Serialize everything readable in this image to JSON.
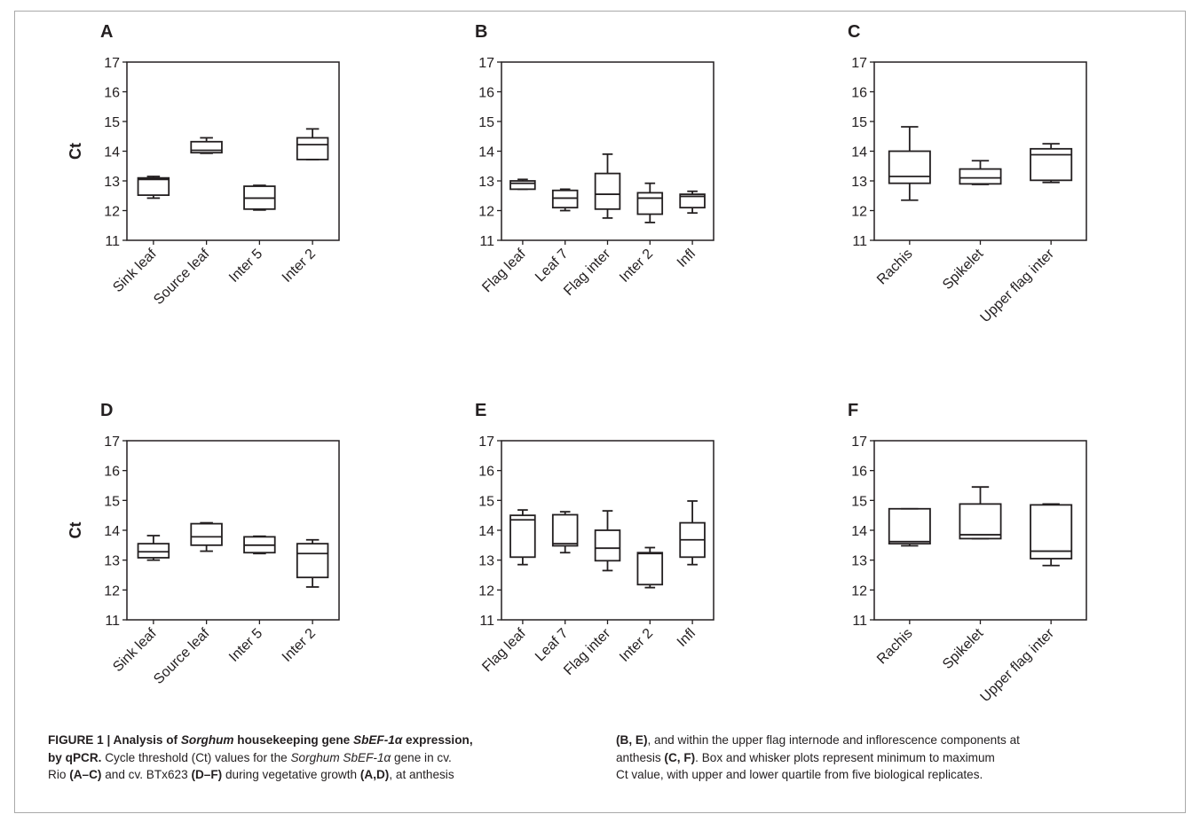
{
  "figure": {
    "caption": {
      "figure_label": "FIGURE 1 | ",
      "title_1": "Analysis of ",
      "title_sorghum": "Sorghum",
      "title_2": " housekeeping gene ",
      "title_gene": "SbEF-1α",
      "title_3": " expression,",
      "title_4": "by qPCR.",
      "text_1": " Cycle threshold (Ct) values for the ",
      "text_sorghum": "Sorghum SbEF-1α",
      "text_2": " gene in cv.",
      "text_3": "Rio ",
      "ref_ac": "(A–C)",
      "text_4": " and cv. BTx623 ",
      "ref_df": "(D–F)",
      "text_5": " during vegetative growth ",
      "ref_ad": "(A,D)",
      "text_6": ", at anthesis",
      "ref_be": "(B, E)",
      "text_7": ", and within the upper flag internode and inflorescence components at",
      "text_8": "anthesis ",
      "ref_cf": "(C, F)",
      "text_9": ". Box and whisker plots represent minimum to maximum",
      "text_10": "Ct value, with upper and lower quartile from five biological replicates."
    }
  },
  "chart_data": [
    {
      "panel": "A",
      "type": "box",
      "ylabel": "Ct",
      "ylim": [
        11,
        17
      ],
      "yticks": [
        11,
        12,
        13,
        14,
        15,
        16,
        17
      ],
      "categories": [
        "Sink leaf",
        "Source leaf",
        "Inter 5",
        "Inter 2"
      ],
      "boxes": [
        {
          "min": 12.42,
          "q1": 12.52,
          "median": 13.05,
          "q3": 13.1,
          "max": 13.15
        },
        {
          "min": 13.93,
          "q1": 13.95,
          "median": 14.03,
          "q3": 14.32,
          "max": 14.45
        },
        {
          "min": 12.02,
          "q1": 12.05,
          "median": 12.42,
          "q3": 12.82,
          "max": 12.85
        },
        {
          "min": 13.72,
          "q1": 13.72,
          "median": 14.22,
          "q3": 14.45,
          "max": 14.75
        }
      ]
    },
    {
      "panel": "B",
      "type": "box",
      "ylabel": "",
      "ylim": [
        11,
        17
      ],
      "yticks": [
        11,
        12,
        13,
        14,
        15,
        16,
        17
      ],
      "categories": [
        "Flag leaf",
        "Leaf 7",
        "Flag inter",
        "Inter 2",
        "Infl"
      ],
      "boxes": [
        {
          "min": 12.72,
          "q1": 12.72,
          "median": 12.92,
          "q3": 13.0,
          "max": 13.05
        },
        {
          "min": 12.0,
          "q1": 12.1,
          "median": 12.42,
          "q3": 12.68,
          "max": 12.72
        },
        {
          "min": 11.75,
          "q1": 12.05,
          "median": 12.55,
          "q3": 13.25,
          "max": 13.9
        },
        {
          "min": 11.6,
          "q1": 11.88,
          "median": 12.42,
          "q3": 12.6,
          "max": 12.92
        },
        {
          "min": 11.92,
          "q1": 12.1,
          "median": 12.48,
          "q3": 12.55,
          "max": 12.65
        }
      ]
    },
    {
      "panel": "C",
      "type": "box",
      "ylabel": "",
      "ylim": [
        11,
        17
      ],
      "yticks": [
        11,
        12,
        13,
        14,
        15,
        16,
        17
      ],
      "categories": [
        "Rachis",
        "Spikelet",
        "Upper flag inter"
      ],
      "boxes": [
        {
          "min": 12.35,
          "q1": 12.92,
          "median": 13.15,
          "q3": 14.0,
          "max": 14.82
        },
        {
          "min": 12.88,
          "q1": 12.9,
          "median": 13.1,
          "q3": 13.4,
          "max": 13.68
        },
        {
          "min": 12.95,
          "q1": 13.02,
          "median": 13.88,
          "q3": 14.08,
          "max": 14.25
        }
      ]
    },
    {
      "panel": "D",
      "type": "box",
      "ylabel": "Ct",
      "ylim": [
        11,
        17
      ],
      "yticks": [
        11,
        12,
        13,
        14,
        15,
        16,
        17
      ],
      "categories": [
        "Sink leaf",
        "Source leaf",
        "Inter 5",
        "Inter 2"
      ],
      "boxes": [
        {
          "min": 13.0,
          "q1": 13.08,
          "median": 13.28,
          "q3": 13.55,
          "max": 13.82
        },
        {
          "min": 13.3,
          "q1": 13.5,
          "median": 13.78,
          "q3": 14.22,
          "max": 14.25
        },
        {
          "min": 13.22,
          "q1": 13.25,
          "median": 13.5,
          "q3": 13.78,
          "max": 13.8
        },
        {
          "min": 12.1,
          "q1": 12.42,
          "median": 13.22,
          "q3": 13.55,
          "max": 13.68
        }
      ]
    },
    {
      "panel": "E",
      "type": "box",
      "ylabel": "",
      "ylim": [
        11,
        17
      ],
      "yticks": [
        11,
        12,
        13,
        14,
        15,
        16,
        17
      ],
      "categories": [
        "Flag leaf",
        "Leaf 7",
        "Flag inter",
        "Inter 2",
        "Infl"
      ],
      "boxes": [
        {
          "min": 12.85,
          "q1": 13.1,
          "median": 14.35,
          "q3": 14.5,
          "max": 14.68
        },
        {
          "min": 13.25,
          "q1": 13.48,
          "median": 13.55,
          "q3": 14.52,
          "max": 14.62
        },
        {
          "min": 12.65,
          "q1": 12.98,
          "median": 13.4,
          "q3": 14.0,
          "max": 14.65
        },
        {
          "min": 12.08,
          "q1": 12.18,
          "median": 13.22,
          "q3": 13.25,
          "max": 13.42
        },
        {
          "min": 12.85,
          "q1": 13.1,
          "median": 13.68,
          "q3": 14.25,
          "max": 14.98
        }
      ]
    },
    {
      "panel": "F",
      "type": "box",
      "ylabel": "",
      "ylim": [
        11,
        17
      ],
      "yticks": [
        11,
        12,
        13,
        14,
        15,
        16,
        17
      ],
      "categories": [
        "Rachis",
        "Spikelet",
        "Upper flag inter"
      ],
      "boxes": [
        {
          "min": 13.48,
          "q1": 13.55,
          "median": 13.62,
          "q3": 14.72,
          "max": 14.72
        },
        {
          "min": 13.72,
          "q1": 13.72,
          "median": 13.85,
          "q3": 14.88,
          "max": 15.45
        },
        {
          "min": 12.82,
          "q1": 13.05,
          "median": 13.3,
          "q3": 14.85,
          "max": 14.88
        }
      ]
    }
  ]
}
